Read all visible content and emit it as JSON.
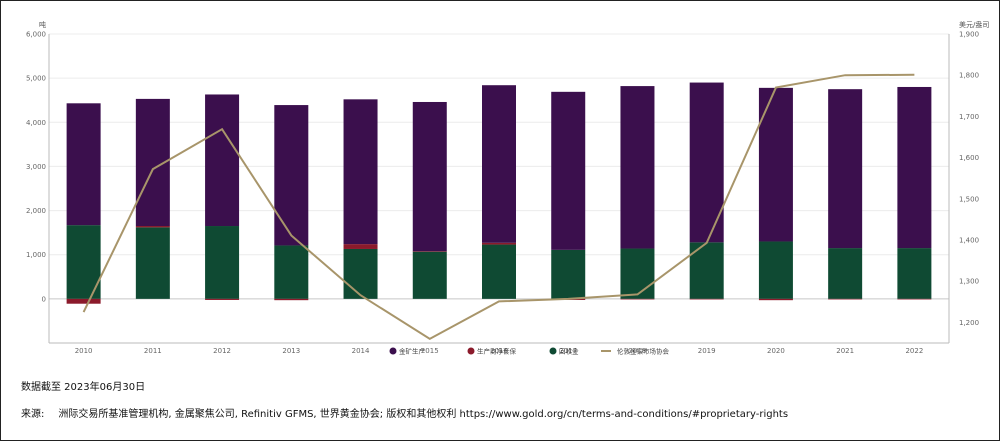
{
  "chart_data": {
    "type": "bar",
    "y_left_unit": "吨",
    "y_right_unit": "美元/盎司",
    "ylim_left": [
      -1000,
      6000
    ],
    "ylim_right": [
      1150,
      1900
    ],
    "yticks_left": [
      "6,000",
      "5,000",
      "4,000",
      "3,000",
      "2,000",
      "1,000",
      "0"
    ],
    "yticks_right": [
      "1,900",
      "1,800",
      "1,700",
      "1,600",
      "1,500",
      "1,400",
      "1,300",
      "1,200"
    ],
    "categories": [
      "2010",
      "2011",
      "2012",
      "2013",
      "2014",
      "2015",
      "2016",
      "2017",
      "2018",
      "2019",
      "2020",
      "2021",
      "2022"
    ],
    "series": [
      {
        "name": "金矿生产",
        "kind": "bar",
        "color": "#3b0f4d",
        "values": [
          2760,
          2880,
          2980,
          3180,
          3280,
          3380,
          3570,
          3580,
          3680,
          3620,
          3480,
          3600,
          3650
        ]
      },
      {
        "name": "生产商净套保",
        "kind": "bar",
        "color": "#8b1a2b",
        "values": [
          -110,
          30,
          -25,
          -30,
          110,
          10,
          40,
          -25,
          -10,
          -5,
          -30,
          -5,
          -10
        ]
      },
      {
        "name": "回收金",
        "kind": "bar",
        "color": "#0f4a33",
        "values": [
          1670,
          1620,
          1650,
          1210,
          1130,
          1070,
          1230,
          1110,
          1140,
          1280,
          1300,
          1150,
          1150
        ]
      },
      {
        "name": "伦敦金银市场协会",
        "kind": "line",
        "color": "#a8956a",
        "values": [
          1225,
          1572,
          1669,
          1411,
          1266,
          1160,
          1251,
          1257,
          1268,
          1393,
          1770,
          1800,
          1801
        ]
      }
    ],
    "legend_position": "bottom-center",
    "grid": true
  },
  "footer": {
    "as_of": "数据截至 2023年06月30日",
    "source_label": "来源:",
    "source_text": "洲际交易所基准管理机构, 金属聚焦公司, Refinitiv GFMS, 世界黄金协会; 版权和其他权利 https://www.gold.org/cn/terms-and-conditions/#proprietary-rights"
  }
}
